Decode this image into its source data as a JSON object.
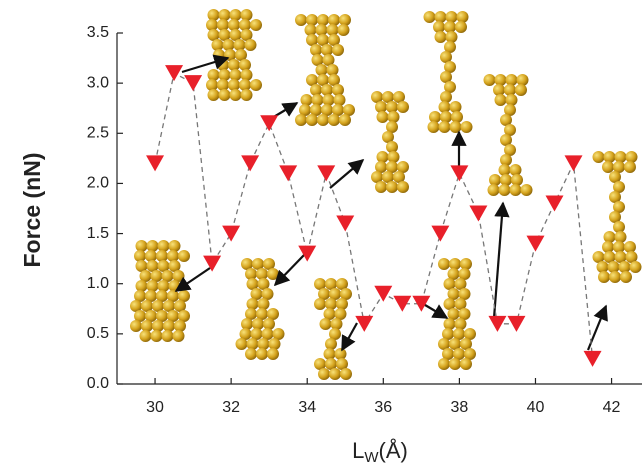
{
  "chart_data": {
    "type": "line",
    "y_label": "Force (nN)",
    "x_label_parts": [
      "L",
      "W",
      "(Å)"
    ],
    "x": [
      30,
      30.5,
      31,
      31.5,
      32,
      32.5,
      33,
      33.5,
      34,
      34.5,
      35,
      35.5,
      36,
      36.5,
      37,
      37.5,
      38,
      38.5,
      39,
      39.5,
      40,
      40.5,
      41,
      41.5
    ],
    "series": [
      {
        "color": "#e8202a",
        "values": [
          2.2,
          3.1,
          3.0,
          1.2,
          1.5,
          2.2,
          2.6,
          2.1,
          1.3,
          2.1,
          1.6,
          0.6,
          0.9,
          0.8,
          0.8,
          1.5,
          2.1,
          1.7,
          0.6,
          0.6,
          1.4,
          1.8,
          2.2,
          0.25
        ]
      }
    ],
    "xlim": [
      29,
      42.8
    ],
    "ylim": [
      0,
      3.5
    ],
    "xticks": [
      30,
      32,
      34,
      36,
      38,
      40,
      42
    ],
    "yticks": [
      {
        "value": 0,
        "label": "0.0"
      },
      {
        "value": 0.5,
        "label": "0.5"
      },
      {
        "value": 1,
        "label": "1.0"
      },
      {
        "value": 1.5,
        "label": "1.5"
      },
      {
        "value": 2,
        "label": "2.0"
      },
      {
        "value": 2.5,
        "label": "2.5"
      },
      {
        "value": 3,
        "label": "3.0"
      },
      {
        "value": 3.5,
        "label": "3.5"
      }
    ],
    "line_color": "#777777",
    "line_dash": true
  }
}
